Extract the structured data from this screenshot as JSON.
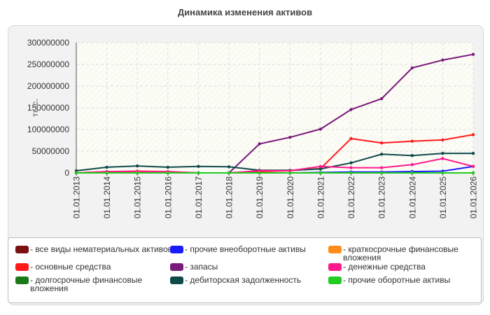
{
  "chart_data": {
    "type": "line",
    "title": "Динамика изменения активов",
    "ylabel": "тыс.",
    "ylim": [
      0,
      300000000
    ],
    "yticks": [
      "300000000",
      "250000000",
      "200000000",
      "150000000",
      "100000000",
      "50000000",
      "0"
    ],
    "categories": [
      "01.01.2013",
      "01.01.2014",
      "01.01.2015",
      "01.01.2016",
      "01.01.2017",
      "01.01.2018",
      "01.01.2019",
      "01.01.2020",
      "01.01.2021",
      "01.01.2022",
      "01.01.2023",
      "01.01.2024",
      "01.01.2025",
      "01.01.2026"
    ],
    "grid": true,
    "legend_position": "bottom",
    "series": [
      {
        "name": "- все виды нематериальных активов",
        "color": "#7a1010",
        "values": [
          0,
          0,
          0,
          0,
          0,
          0,
          0,
          0,
          0,
          0,
          0,
          0,
          0,
          0
        ]
      },
      {
        "name": "- основные средства",
        "color": "#ff1a1a",
        "values": [
          0,
          3000000,
          4000000,
          3000000,
          0,
          0,
          3000000,
          5000000,
          10000000,
          79000000,
          69000000,
          73000000,
          76000000,
          88000000
        ]
      },
      {
        "name": "- долгосрочные финансовые вложения",
        "color": "#1a7a1a",
        "values": [
          0,
          0,
          0,
          0,
          0,
          0,
          0,
          0,
          0,
          0,
          0,
          0,
          0,
          0
        ]
      },
      {
        "name": "- прочие внеоборотные активы",
        "color": "#1a1aff",
        "values": [
          0,
          0,
          0,
          0,
          0,
          0,
          0,
          0,
          1000000,
          2000000,
          2000000,
          3000000,
          4000000,
          15000000
        ]
      },
      {
        "name": "- запасы",
        "color": "#7a1a7a",
        "values": [
          0,
          0,
          0,
          0,
          0,
          0,
          67000000,
          82000000,
          101000000,
          146000000,
          171000000,
          242000000,
          260000000,
          273000000
        ]
      },
      {
        "name": "- дебиторская задолженность",
        "color": "#0e4a4a",
        "values": [
          5000000,
          13000000,
          16000000,
          13000000,
          15000000,
          14000000,
          6000000,
          6000000,
          9000000,
          23000000,
          43000000,
          40000000,
          45000000,
          45000000
        ]
      },
      {
        "name": "- краткосрочные финансовые вложения",
        "color": "#ff8c1a",
        "values": [
          0,
          0,
          0,
          0,
          0,
          0,
          0,
          0,
          0,
          0,
          0,
          0,
          0,
          0
        ]
      },
      {
        "name": "- денежные средства",
        "color": "#ff1a8c",
        "values": [
          0,
          3000000,
          3000000,
          3000000,
          0,
          0,
          5000000,
          5000000,
          15000000,
          12000000,
          12000000,
          19000000,
          33000000,
          15000000
        ]
      },
      {
        "name": "- прочие оборотные активы",
        "color": "#22cc22",
        "values": [
          0,
          0,
          0,
          0,
          0,
          0,
          0,
          0,
          0,
          0,
          0,
          0,
          0,
          0
        ]
      }
    ]
  }
}
